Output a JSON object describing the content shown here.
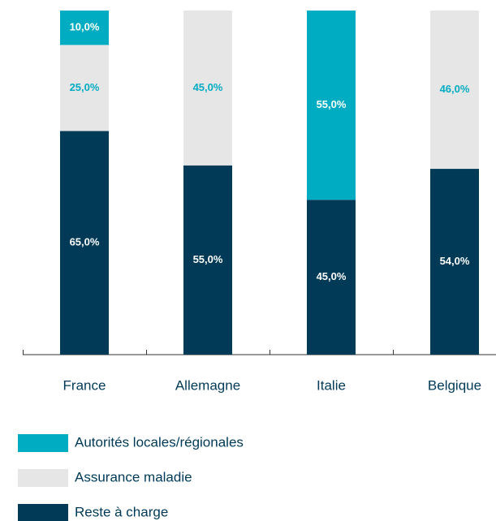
{
  "chart_data": {
    "type": "stacked_bar",
    "categories": [
      "France",
      "Allemagne",
      "Italie",
      "Belgique"
    ],
    "series": [
      {
        "name": "Reste à charge",
        "color": "#003a57",
        "label_color": "#ffffff",
        "values": [
          65,
          55,
          45,
          54
        ],
        "value_labels": [
          "65,0%",
          "55,0%",
          "45,0%",
          "54,0%"
        ]
      },
      {
        "name": "Assurance maladie",
        "color": "#e6e6e6",
        "label_color": "#00acc1",
        "values": [
          25,
          45,
          0,
          46
        ],
        "value_labels": [
          "25,0%",
          "45,0%",
          null,
          "46,0%"
        ]
      },
      {
        "name": "Autorités locales/régionales",
        "color": "#00acc1",
        "label_color": "#ffffff",
        "values": [
          10,
          0,
          55,
          0
        ],
        "value_labels": [
          "10,0%",
          null,
          "55,0%",
          null
        ]
      }
    ],
    "ylim": [
      0,
      100
    ],
    "legend": "bottom-left"
  }
}
